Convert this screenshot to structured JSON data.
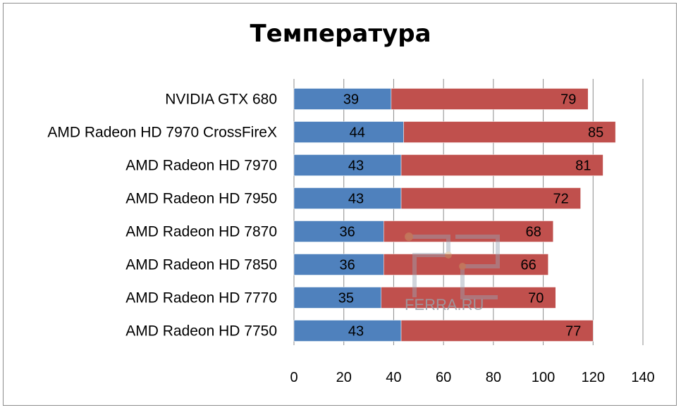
{
  "chart_data": {
    "type": "bar",
    "orientation": "horizontal",
    "stacked": true,
    "title": "Температура",
    "categories": [
      "NVIDIA  GTX  680",
      "AMD Radeon  HD 7970 CrossFireX",
      "AMD Radeon  HD 7970",
      "AMD Radeon  HD 7950",
      "AMD Radeon  HD 7870",
      "AMD Radeon  HD 7850",
      "AMD Radeon  HD 7770",
      "AMD Radeon  HD 7750"
    ],
    "series": [
      {
        "values": [
          39,
          44,
          43,
          43,
          36,
          36,
          35,
          43
        ],
        "color": "#4f81bd"
      },
      {
        "values": [
          79,
          85,
          81,
          72,
          68,
          66,
          70,
          77
        ],
        "color": "#c0504d"
      }
    ],
    "xlim": [
      0,
      140
    ],
    "xticks": [
      "0",
      "20",
      "40",
      "60",
      "80",
      "100",
      "120",
      "140"
    ],
    "xgrid": true,
    "legend": "none"
  },
  "watermark": {
    "text": "FERRA.RU"
  }
}
